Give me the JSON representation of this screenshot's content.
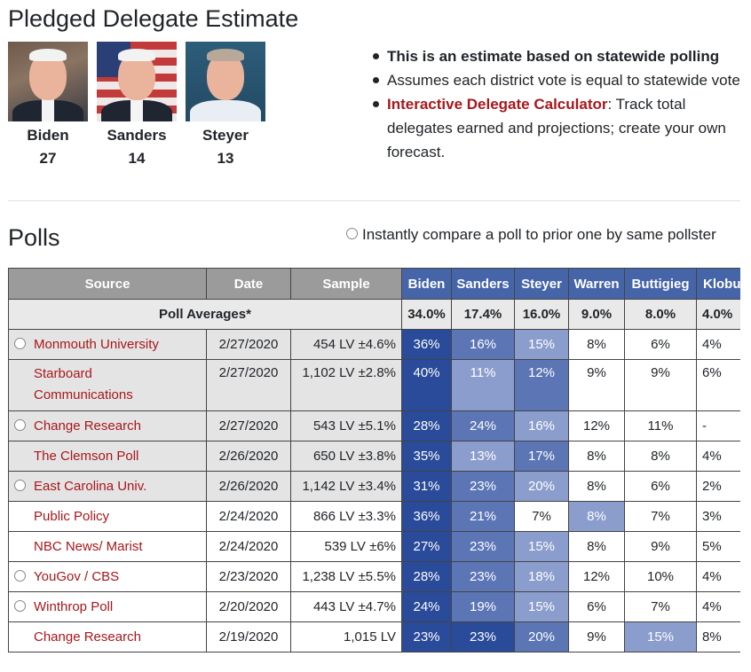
{
  "delegates": {
    "title": "Pledged Delegate Estimate",
    "candidates": [
      {
        "name": "Biden",
        "count": "27"
      },
      {
        "name": "Sanders",
        "count": "14"
      },
      {
        "name": "Steyer",
        "count": "13"
      }
    ],
    "notes": {
      "estimate": "This is an estimate based on statewide polling",
      "assumes": "Assumes each district vote is equal to statewide vote",
      "calculator_link": "Interactive Delegate Calculator",
      "calculator_text": ": Track total delegates earned and projections; create your own forecast."
    }
  },
  "polls": {
    "title": "Polls",
    "compare_label": "Instantly compare a poll to prior one by same pollster",
    "columns": [
      "Source",
      "Date",
      "Sample",
      "Biden",
      "Sanders",
      "Steyer",
      "Warren",
      "Buttigieg",
      "Klobuchar"
    ],
    "averages": {
      "label": "Poll Averages*",
      "values": [
        "34.0%",
        "17.4%",
        "16.0%",
        "9.0%",
        "8.0%",
        "4.0%"
      ]
    },
    "rows": [
      {
        "source": "Monmouth University",
        "radio": true,
        "date": "2/27/2020",
        "sample": "454 LV ±4.6%",
        "values": [
          "36%",
          "16%",
          "15%",
          "8%",
          "6%",
          "4%"
        ]
      },
      {
        "source": "Starboard Communications",
        "radio": false,
        "date": "2/27/2020",
        "sample": "1,102 LV ±2.8%",
        "values": [
          "40%",
          "11%",
          "12%",
          "9%",
          "9%",
          "6%"
        ]
      },
      {
        "source": "Change Research",
        "radio": true,
        "date": "2/27/2020",
        "sample": "543 LV ±5.1%",
        "values": [
          "28%",
          "24%",
          "16%",
          "12%",
          "11%",
          "-"
        ]
      },
      {
        "source": "The Clemson Poll",
        "radio": false,
        "date": "2/26/2020",
        "sample": "650 LV ±3.8%",
        "values": [
          "35%",
          "13%",
          "17%",
          "8%",
          "8%",
          "4%"
        ]
      },
      {
        "source": "East Carolina Univ.",
        "radio": true,
        "date": "2/26/2020",
        "sample": "1,142 LV ±3.4%",
        "values": [
          "31%",
          "23%",
          "20%",
          "8%",
          "6%",
          "2%"
        ]
      },
      {
        "source": "Public Policy",
        "radio": false,
        "date": "2/24/2020",
        "sample": "866 LV ±3.3%",
        "values": [
          "36%",
          "21%",
          "7%",
          "8%",
          "7%",
          "3%"
        ]
      },
      {
        "source": "NBC News/ Marist",
        "radio": false,
        "date": "2/24/2020",
        "sample": "539 LV ±6%",
        "values": [
          "27%",
          "23%",
          "15%",
          "8%",
          "9%",
          "5%"
        ]
      },
      {
        "source": "YouGov / CBS",
        "radio": true,
        "date": "2/23/2020",
        "sample": "1,238 LV ±5.5%",
        "values": [
          "28%",
          "23%",
          "18%",
          "12%",
          "10%",
          "4%"
        ]
      },
      {
        "source": "Winthrop Poll",
        "radio": true,
        "date": "2/20/2020",
        "sample": "443 LV ±4.7%",
        "values": [
          "24%",
          "19%",
          "15%",
          "6%",
          "7%",
          "4%"
        ]
      },
      {
        "source": "Change Research",
        "radio": false,
        "date": "2/19/2020",
        "sample": "1,015 LV",
        "values": [
          "23%",
          "23%",
          "20%",
          "9%",
          "15%",
          "8%"
        ]
      }
    ]
  },
  "colors": {
    "link": "#a8171b",
    "header_gray": "#9b9b9b",
    "header_blue": "#4665a8",
    "heat_strong": "#2a4a9a",
    "heat_medium": "#5b75b5",
    "heat_light": "#8b9dcc"
  }
}
